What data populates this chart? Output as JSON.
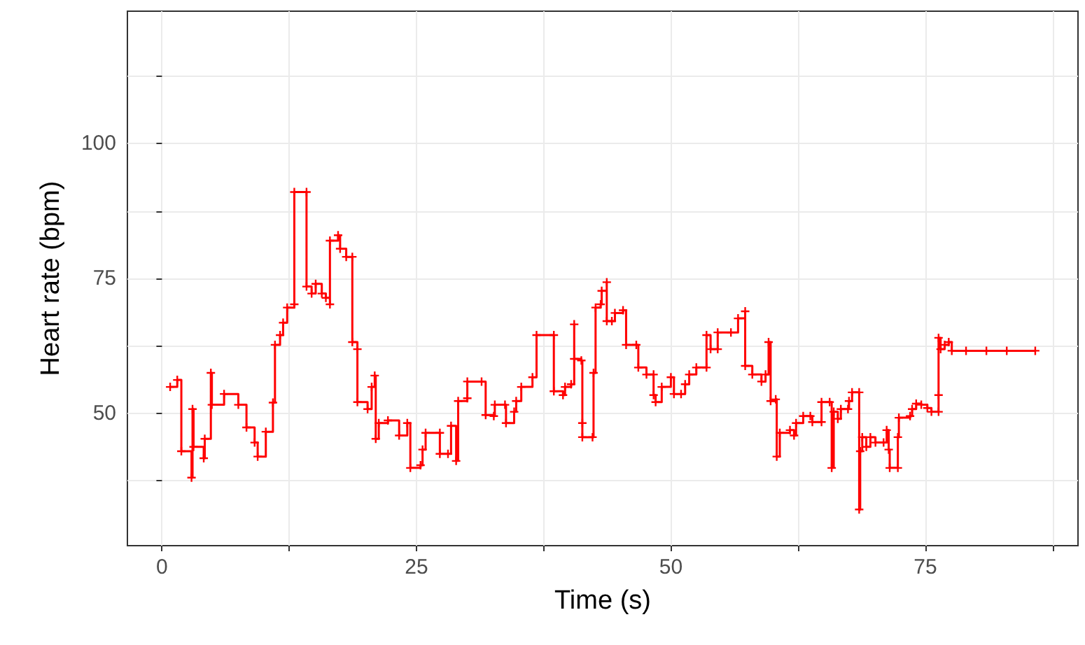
{
  "chart_data": {
    "type": "step",
    "xlabel": "Time (s)",
    "ylabel": "Heart rate (bpm)",
    "xlim": [
      -3.4,
      90
    ],
    "xticks": [
      0,
      {
        "value": 12.5,
        "label": null
      },
      25,
      {
        "value": 37.5,
        "label": null
      },
      50,
      {
        "value": 62.5,
        "label": null
      },
      75,
      {
        "value": 87.5,
        "label": null
      }
    ],
    "ylim": [
      25.5,
      124.5
    ],
    "yticks": [
      {
        "value": 37.5,
        "label": null
      },
      50,
      {
        "value": 62.5,
        "label": null
      },
      75,
      {
        "value": 87.5,
        "label": null
      },
      100,
      {
        "value": 112.5,
        "label": null
      }
    ],
    "grid": true,
    "marker": "cross",
    "line_style": "solid",
    "series": [
      {
        "color": "#ff0000",
        "x": [
          0.8,
          1.5,
          1.9,
          2.9,
          3.0,
          3.1,
          4.1,
          4.2,
          4.8,
          4.9,
          6.1,
          7.5,
          8.3,
          9.1,
          9.4,
          10.2,
          10.9,
          11.1,
          11.6,
          11.9,
          12.3,
          13.0,
          13.0,
          14.2,
          14.2,
          14.7,
          15.1,
          15.7,
          16.1,
          16.5,
          16.5,
          17.3,
          17.5,
          18.1,
          18.7,
          18.7,
          19.2,
          19.2,
          20.2,
          20.6,
          20.9,
          21.0,
          21.3,
          22.2,
          23.3,
          24.1,
          24.4,
          25.4,
          25.6,
          25.9,
          27.3,
          27.3,
          28.1,
          28.4,
          28.9,
          29.1,
          30.0,
          30.0,
          31.4,
          31.8,
          32.6,
          32.7,
          33.7,
          33.8,
          34.6,
          34.8,
          35.3,
          36.4,
          36.8,
          38.5,
          38.5,
          39.4,
          39.6,
          40.2,
          40.5,
          40.5,
          41.2,
          41.3,
          41.3,
          42.3,
          42.4,
          42.6,
          43.1,
          43.2,
          43.7,
          43.7,
          44.2,
          44.5,
          45.3,
          45.6,
          46.6,
          46.8,
          47.6,
          48.3,
          48.3,
          48.5,
          49.1,
          50.0,
          50.3,
          51.0,
          51.4,
          51.8,
          52.5,
          53.5,
          53.5,
          53.9,
          54.6,
          54.6,
          55.9,
          56.6,
          57.3,
          57.3,
          58.0,
          58.9,
          59.3,
          59.6,
          59.8,
          60.3,
          60.4,
          60.7,
          61.7,
          62.1,
          62.3,
          63.0,
          63.7,
          63.9,
          64.8,
          64.8,
          65.6,
          65.8,
          66.0,
          66.4,
          66.7,
          67.4,
          67.5,
          67.8,
          68.5,
          68.5,
          68.6,
          68.8,
          69.2,
          69.6,
          70.1,
          70.9,
          71.2,
          71.4,
          71.5,
          72.3,
          72.3,
          72.4,
          73.5,
          73.7,
          74.1,
          74.6,
          75.2,
          75.6,
          76.3,
          76.3,
          76.3,
          76.5,
          76.9,
          77.3,
          77.6,
          79.0,
          81.0,
          83.0,
          85.8
        ],
        "values": [
          54.9,
          56.2,
          43.0,
          38.1,
          50.8,
          43.8,
          41.7,
          45.3,
          57.5,
          51.6,
          53.6,
          51.6,
          47.4,
          44.6,
          42.0,
          46.6,
          52.0,
          62.7,
          64.5,
          66.8,
          69.6,
          70.2,
          91.0,
          91.0,
          73.5,
          72.2,
          74.0,
          72.2,
          71.4,
          70.2,
          82.0,
          83.0,
          80.5,
          79.0,
          79.0,
          63.2,
          61.9,
          52.1,
          50.8,
          54.9,
          57.0,
          45.3,
          48.2,
          48.7,
          45.9,
          48.2,
          39.9,
          40.4,
          43.3,
          46.4,
          46.4,
          42.5,
          42.5,
          47.7,
          41.2,
          52.3,
          52.8,
          55.9,
          55.9,
          49.7,
          49.5,
          51.6,
          51.6,
          48.2,
          50.3,
          52.3,
          54.9,
          56.7,
          64.5,
          64.5,
          54.1,
          53.4,
          54.9,
          55.4,
          66.5,
          60.1,
          59.8,
          48.2,
          45.6,
          45.6,
          57.5,
          69.6,
          70.2,
          72.7,
          74.3,
          67.1,
          67.1,
          68.6,
          69.1,
          62.7,
          62.7,
          58.5,
          57.2,
          57.2,
          53.4,
          52.1,
          54.9,
          56.7,
          53.6,
          53.6,
          55.4,
          57.2,
          58.5,
          58.5,
          64.5,
          61.9,
          61.9,
          65.0,
          65.0,
          67.6,
          68.9,
          58.8,
          57.2,
          55.9,
          57.2,
          63.2,
          52.3,
          52.6,
          42.0,
          46.4,
          46.9,
          45.9,
          48.2,
          49.5,
          49.5,
          48.4,
          48.4,
          52.1,
          52.1,
          39.9,
          50.3,
          49.0,
          50.8,
          50.8,
          52.3,
          53.9,
          53.9,
          32.2,
          43.0,
          45.6,
          43.8,
          45.6,
          44.6,
          44.6,
          46.9,
          43.3,
          39.9,
          39.9,
          45.6,
          49.2,
          49.5,
          50.8,
          51.8,
          51.6,
          51.0,
          50.3,
          50.3,
          53.4,
          64.0,
          61.9,
          62.7,
          63.2,
          61.6,
          61.6,
          61.6,
          61.6,
          61.6
        ]
      }
    ]
  }
}
